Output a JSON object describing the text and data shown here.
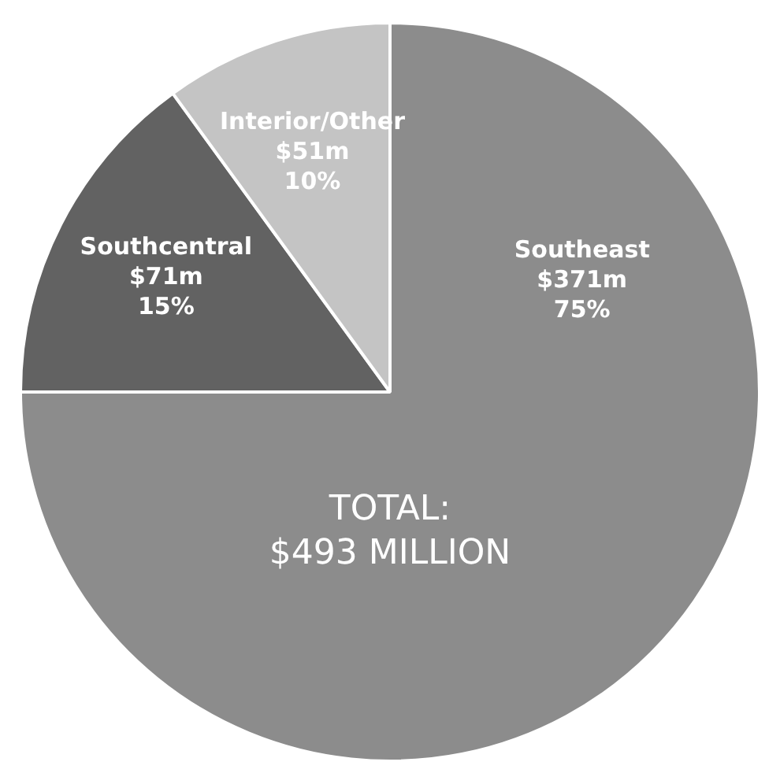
{
  "chart_data": {
    "type": "pie",
    "categories": [
      "Southeast",
      "Southcentral",
      "Interior/Other"
    ],
    "values": [
      75,
      15,
      10
    ],
    "value_labels": [
      "$371m\n75%",
      "$71m\n15%",
      "$51m\n10%"
    ],
    "colors": [
      "#8c8c8c",
      "#626262",
      "#c4c4c4"
    ],
    "annotations": [
      "TOTAL:\n$493 MILLION"
    ],
    "legend": false
  }
}
